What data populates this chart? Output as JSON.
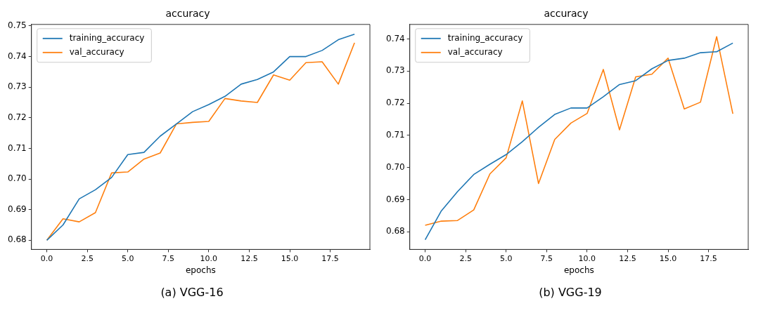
{
  "chart_data": [
    {
      "type": "line",
      "title": "accuracy",
      "xlabel": "epochs",
      "legend": "top left",
      "grid": false,
      "annotations": [
        "(a) VGG-16"
      ],
      "x": [
        0,
        1,
        2,
        3,
        4,
        5,
        6,
        7,
        8,
        9,
        10,
        11,
        12,
        13,
        14,
        15,
        16,
        17,
        18,
        19
      ],
      "xlim": [
        -0.95,
        19.95
      ],
      "xticks": [
        {
          "value": 0,
          "label": "0.0"
        },
        {
          "value": 2.5,
          "label": "2.5"
        },
        {
          "value": 5,
          "label": "5.0"
        },
        {
          "value": 7.5,
          "label": "7.5"
        },
        {
          "value": 10,
          "label": "10.0"
        },
        {
          "value": 12.5,
          "label": "12.5"
        },
        {
          "value": 15,
          "label": "15.0"
        },
        {
          "value": 17.5,
          "label": "17.5"
        }
      ],
      "ylim": [
        0.677,
        0.7505
      ],
      "yticks": [
        {
          "value": 0.68,
          "label": "0.68"
        },
        {
          "value": 0.69,
          "label": "0.69"
        },
        {
          "value": 0.7,
          "label": "0.70"
        },
        {
          "value": 0.71,
          "label": "0.71"
        },
        {
          "value": 0.72,
          "label": "0.72"
        },
        {
          "value": 0.73,
          "label": "0.73"
        },
        {
          "value": 0.74,
          "label": "0.74"
        },
        {
          "value": 0.75,
          "label": "0.75"
        }
      ],
      "series": [
        {
          "name": "training_accuracy",
          "color": "#1f77b4",
          "values": [
            0.68,
            0.685,
            0.6935,
            0.6965,
            0.7005,
            0.708,
            0.7087,
            0.714,
            0.718,
            0.722,
            0.7243,
            0.727,
            0.731,
            0.7325,
            0.735,
            0.74,
            0.74,
            0.742,
            0.7455,
            0.7473
          ]
        },
        {
          "name": "val_accuracy",
          "color": "#ff7f0e",
          "values": [
            0.68,
            0.687,
            0.686,
            0.689,
            0.702,
            0.7023,
            0.7065,
            0.7085,
            0.718,
            0.7185,
            0.7188,
            0.7263,
            0.7255,
            0.725,
            0.734,
            0.7323,
            0.738,
            0.7383,
            0.731,
            0.7445
          ]
        }
      ]
    },
    {
      "type": "line",
      "title": "accuracy",
      "xlabel": "epochs",
      "legend": "top left",
      "grid": false,
      "annotations": [
        "(b) VGG-19"
      ],
      "x": [
        0,
        1,
        2,
        3,
        4,
        5,
        6,
        7,
        8,
        9,
        10,
        11,
        12,
        13,
        14,
        15,
        16,
        17,
        18,
        19
      ],
      "xlim": [
        -0.95,
        19.95
      ],
      "xticks": [
        {
          "value": 0,
          "label": "0.0"
        },
        {
          "value": 2.5,
          "label": "2.5"
        },
        {
          "value": 5,
          "label": "5.0"
        },
        {
          "value": 7.5,
          "label": "7.5"
        },
        {
          "value": 10,
          "label": "10.0"
        },
        {
          "value": 12.5,
          "label": "12.5"
        },
        {
          "value": 15,
          "label": "15.0"
        },
        {
          "value": 17.5,
          "label": "17.5"
        }
      ],
      "ylim": [
        0.6745,
        0.7445
      ],
      "yticks": [
        {
          "value": 0.68,
          "label": "0.68"
        },
        {
          "value": 0.69,
          "label": "0.69"
        },
        {
          "value": 0.7,
          "label": "0.70"
        },
        {
          "value": 0.71,
          "label": "0.71"
        },
        {
          "value": 0.72,
          "label": "0.72"
        },
        {
          "value": 0.73,
          "label": "0.73"
        },
        {
          "value": 0.74,
          "label": "0.74"
        }
      ],
      "series": [
        {
          "name": "training_accuracy",
          "color": "#1f77b4",
          "values": [
            0.6775,
            0.6865,
            0.6925,
            0.6978,
            0.701,
            0.704,
            0.708,
            0.7125,
            0.7165,
            0.7185,
            0.7185,
            0.722,
            0.7258,
            0.727,
            0.7307,
            0.7333,
            0.734,
            0.7357,
            0.736,
            0.7387
          ]
        },
        {
          "name": "val_accuracy",
          "color": "#ff7f0e",
          "values": [
            0.682,
            0.6833,
            0.6835,
            0.6868,
            0.698,
            0.703,
            0.7207,
            0.695,
            0.7087,
            0.7138,
            0.7168,
            0.7305,
            0.7117,
            0.7282,
            0.729,
            0.734,
            0.7182,
            0.7203,
            0.7407,
            0.7167
          ]
        }
      ]
    }
  ]
}
